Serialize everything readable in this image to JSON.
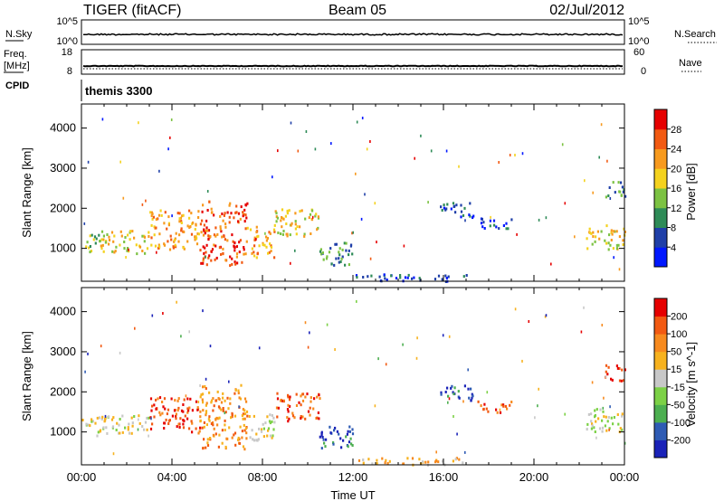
{
  "header": {
    "title": "TIGER (fitACF)",
    "beam": "Beam 05",
    "date": "02/Jul/2012"
  },
  "strip_noise": {
    "left_label": "N.Sky",
    "left_ticks": [
      "10^5",
      "10^0"
    ],
    "right_label": "N.Search",
    "right_ticks": [
      "10^5",
      "10^0"
    ]
  },
  "strip_freq": {
    "left_label_1": "Freq.",
    "left_label_2": "[MHz]",
    "left_ticks": [
      "18",
      "8"
    ],
    "right_label": "Nave",
    "right_ticks": [
      "60",
      "0"
    ]
  },
  "strip_cpid": {
    "label": "CPID",
    "value": "themis 3300"
  },
  "chart_data": [
    {
      "type": "heatmap",
      "name": "power",
      "ylabel": "Slant Range [km]",
      "yticks": [
        "4000",
        "3000",
        "2000",
        "1000"
      ],
      "ylim": [
        180,
        4600
      ],
      "colorbar_label": "Power [dB]",
      "colorbar_ticks": [
        "28",
        "24",
        "20",
        "16",
        "12",
        "8",
        "4"
      ],
      "colors": [
        "#0018ff",
        "#1f3fa8",
        "#2e8b57",
        "#7cc242",
        "#f4d21e",
        "#f79a1e",
        "#f25a12",
        "#e60000"
      ],
      "regions": [
        {
          "t0": 0.0,
          "t1": 0.8,
          "r0": 900,
          "r1": 1400,
          "level": 3
        },
        {
          "t0": 0.8,
          "t1": 3.0,
          "r0": 900,
          "r1": 1500,
          "level": 4
        },
        {
          "t0": 3.0,
          "t1": 5.2,
          "r0": 1000,
          "r1": 2000,
          "level": 5
        },
        {
          "t0": 5.2,
          "t1": 7.3,
          "r0": 600,
          "r1": 2200,
          "level": 6
        },
        {
          "t0": 7.3,
          "t1": 8.5,
          "r0": 800,
          "r1": 1600,
          "level": 5
        },
        {
          "t0": 8.5,
          "t1": 10.5,
          "r0": 1300,
          "r1": 2000,
          "level": 4
        },
        {
          "t0": 10.5,
          "t1": 12.0,
          "r0": 600,
          "r1": 1200,
          "level": 2
        },
        {
          "t0": 12.0,
          "t1": 17.0,
          "r0": 200,
          "r1": 380,
          "level": 1
        },
        {
          "t0": 15.8,
          "t1": 17.3,
          "r0": 1800,
          "r1": 2200,
          "level": 1
        },
        {
          "t0": 17.5,
          "t1": 19.0,
          "r0": 1500,
          "r1": 1800,
          "level": 1
        },
        {
          "t0": 22.3,
          "t1": 24.0,
          "r0": 1000,
          "r1": 1600,
          "level": 4
        },
        {
          "t0": 23.0,
          "t1": 24.0,
          "r0": 2300,
          "r1": 2700,
          "level": 2
        }
      ]
    },
    {
      "type": "heatmap",
      "name": "velocity",
      "xlabel": "Time UT",
      "xticks": [
        "00:00",
        "04:00",
        "08:00",
        "12:00",
        "16:00",
        "20:00",
        "00:00"
      ],
      "xlim": [
        0,
        24
      ],
      "ylabel": "Slant Range [km]",
      "yticks": [
        "4000",
        "3000",
        "2000",
        "1000"
      ],
      "ylim": [
        180,
        4600
      ],
      "colorbar_label": "Velocity [m s^-1]",
      "colorbar_ticks": [
        "200",
        "100",
        "50",
        "15",
        "-15",
        "-50",
        "-100",
        "-200"
      ],
      "colors": [
        "#1a22b8",
        "#2e5bb4",
        "#4caf50",
        "#7cd146",
        "#c8c8c8",
        "#f7b21e",
        "#f78a1e",
        "#f25a12",
        "#e60000"
      ],
      "regions": [
        {
          "t0": 0.0,
          "t1": 0.8,
          "r0": 900,
          "r1": 1400,
          "level": 4
        },
        {
          "t0": 0.8,
          "t1": 3.0,
          "r0": 950,
          "r1": 1450,
          "level": 4
        },
        {
          "t0": 3.0,
          "t1": 5.2,
          "r0": 1000,
          "r1": 1900,
          "level": 7
        },
        {
          "t0": 5.2,
          "t1": 7.3,
          "r0": 600,
          "r1": 2200,
          "level": 6
        },
        {
          "t0": 7.3,
          "t1": 8.5,
          "r0": 800,
          "r1": 1500,
          "level": 4
        },
        {
          "t0": 8.5,
          "t1": 10.5,
          "r0": 1300,
          "r1": 2000,
          "level": 7
        },
        {
          "t0": 10.5,
          "t1": 12.0,
          "r0": 600,
          "r1": 1200,
          "level": 1
        },
        {
          "t0": 12.0,
          "t1": 17.0,
          "r0": 200,
          "r1": 380,
          "level": 5
        },
        {
          "t0": 15.8,
          "t1": 17.3,
          "r0": 1800,
          "r1": 2200,
          "level": 1
        },
        {
          "t0": 17.5,
          "t1": 19.0,
          "r0": 1500,
          "r1": 1800,
          "level": 7
        },
        {
          "t0": 22.3,
          "t1": 24.0,
          "r0": 1000,
          "r1": 1600,
          "level": 4
        },
        {
          "t0": 23.0,
          "t1": 24.0,
          "r0": 2300,
          "r1": 2700,
          "level": 8
        }
      ]
    }
  ]
}
